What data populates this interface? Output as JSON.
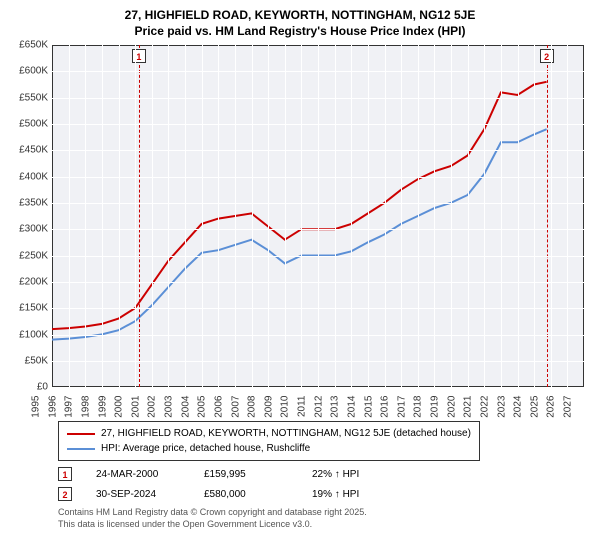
{
  "title_line1": "27, HIGHFIELD ROAD, KEYWORTH, NOTTINGHAM, NG12 5JE",
  "title_line2": "Price paid vs. HM Land Registry's House Price Index (HPI)",
  "chart": {
    "type": "line",
    "background_color": "#f0f1f5",
    "grid_color": "#ffffff",
    "border_color": "#333333",
    "ylim": [
      0,
      650000
    ],
    "ytick_step": 50000,
    "yticks": [
      "£0",
      "£50K",
      "£100K",
      "£150K",
      "£200K",
      "£250K",
      "£300K",
      "£350K",
      "£400K",
      "£450K",
      "£500K",
      "£550K",
      "£600K",
      "£650K"
    ],
    "xlim": [
      1995,
      2027
    ],
    "xtick_step": 1,
    "xticks": [
      "1995",
      "1996",
      "1997",
      "1998",
      "1999",
      "2000",
      "2001",
      "2002",
      "2003",
      "2004",
      "2005",
      "2006",
      "2007",
      "2008",
      "2009",
      "2010",
      "2011",
      "2012",
      "2013",
      "2014",
      "2015",
      "2016",
      "2017",
      "2018",
      "2019",
      "2020",
      "2021",
      "2022",
      "2023",
      "2024",
      "2025",
      "2026",
      "2027"
    ],
    "series": [
      {
        "name": "property",
        "color": "#cc0000",
        "line_width": 2,
        "label": "27, HIGHFIELD ROAD, KEYWORTH, NOTTINGHAM, NG12 5JE (detached house)",
        "x": [
          1995,
          1996,
          1997,
          1998,
          1999,
          2000,
          2000.23,
          2001,
          2002,
          2003,
          2004,
          2005,
          2006,
          2007,
          2008,
          2009,
          2010,
          2011,
          2012,
          2013,
          2014,
          2015,
          2016,
          2017,
          2018,
          2019,
          2020,
          2021,
          2022,
          2023,
          2024,
          2024.75
        ],
        "y": [
          110000,
          112000,
          115000,
          120000,
          130000,
          150000,
          159995,
          195000,
          240000,
          275000,
          310000,
          320000,
          325000,
          330000,
          305000,
          280000,
          300000,
          300000,
          300000,
          310000,
          330000,
          350000,
          375000,
          395000,
          410000,
          420000,
          440000,
          490000,
          560000,
          555000,
          575000,
          580000
        ]
      },
      {
        "name": "hpi",
        "color": "#5b8fd6",
        "line_width": 2,
        "label": "HPI: Average price, detached house, Rushcliffe",
        "x": [
          1995,
          1996,
          1997,
          1998,
          1999,
          2000,
          2001,
          2002,
          2003,
          2004,
          2005,
          2006,
          2007,
          2008,
          2009,
          2010,
          2011,
          2012,
          2013,
          2014,
          2015,
          2016,
          2017,
          2018,
          2019,
          2020,
          2021,
          2022,
          2023,
          2024,
          2024.75
        ],
        "y": [
          90000,
          92000,
          95000,
          100000,
          108000,
          125000,
          155000,
          190000,
          225000,
          255000,
          260000,
          270000,
          280000,
          260000,
          235000,
          250000,
          250000,
          250000,
          258000,
          275000,
          290000,
          310000,
          325000,
          340000,
          350000,
          365000,
          405000,
          465000,
          465000,
          480000,
          490000
        ]
      }
    ],
    "markers": [
      {
        "n": "1",
        "x": 2000.23
      },
      {
        "n": "2",
        "x": 2024.75
      }
    ]
  },
  "legend": {
    "items": [
      {
        "color": "#cc0000",
        "label": "27, HIGHFIELD ROAD, KEYWORTH, NOTTINGHAM, NG12 5JE (detached house)"
      },
      {
        "color": "#5b8fd6",
        "label": "HPI: Average price, detached house, Rushcliffe"
      }
    ]
  },
  "events": [
    {
      "n": "1",
      "date": "24-MAR-2000",
      "price": "£159,995",
      "delta": "22% ↑ HPI"
    },
    {
      "n": "2",
      "date": "30-SEP-2024",
      "price": "£580,000",
      "delta": "19% ↑ HPI"
    }
  ],
  "footer_line1": "Contains HM Land Registry data © Crown copyright and database right 2025.",
  "footer_line2": "This data is licensed under the Open Government Licence v3.0."
}
